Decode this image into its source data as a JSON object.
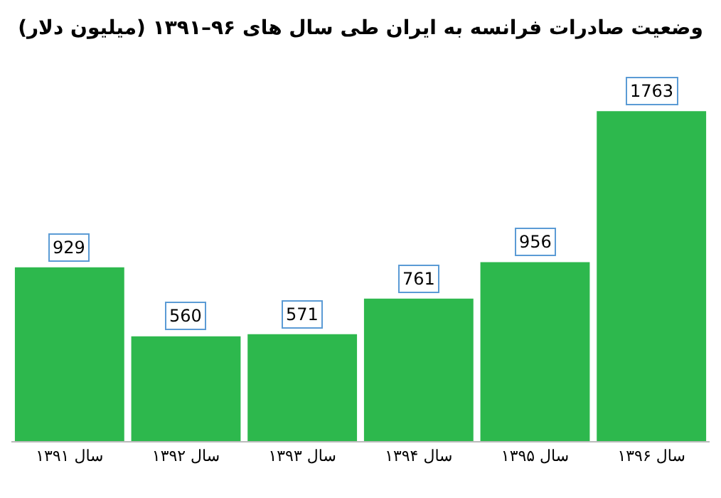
{
  "chart_data": {
    "type": "bar",
    "title": "وضعیت صادرات فرانسه به ایران طی سال های ۹۶–۱۳۹۱ (میلیون دلار)",
    "categories": [
      "سال ۱۳۹۱",
      "سال ۱۳۹۲",
      "سال ۱۳۹۳",
      "سال ۱۳۹۴",
      "سال ۱۳۹۵",
      "سال ۱۳۹۶"
    ],
    "values": [
      929,
      560,
      571,
      761,
      956,
      1763
    ],
    "color": "#2db84d",
    "data_labels": true
  }
}
